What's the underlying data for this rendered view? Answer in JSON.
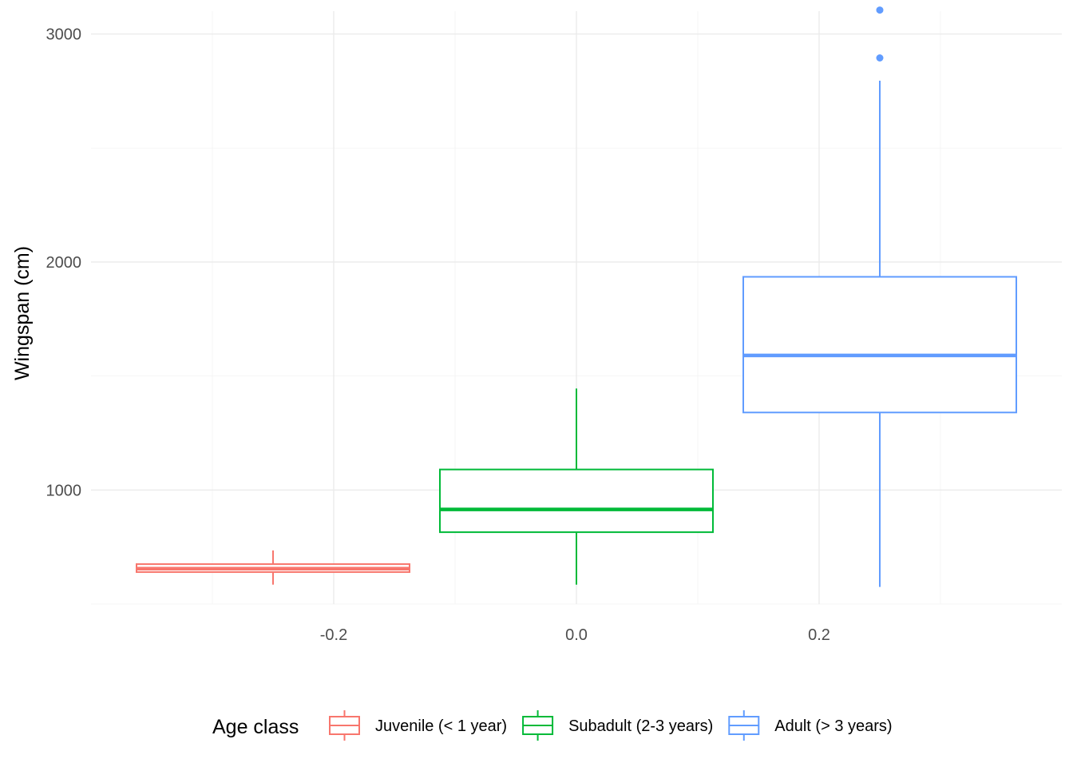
{
  "chart_data": {
    "type": "boxplot",
    "xlabel": "",
    "ylabel": "Wingspan (cm)",
    "xlim": [
      -0.4,
      0.4
    ],
    "ylim": [
      500,
      3100
    ],
    "x_ticks": [
      -0.2,
      0.0,
      0.2
    ],
    "x_tick_labels": [
      "-0.2",
      "0.0",
      "0.2"
    ],
    "y_ticks": [
      1000,
      2000,
      3000
    ],
    "y_tick_labels": [
      "1000",
      "2000",
      "3000"
    ],
    "grid": true,
    "legend_title": "Age class",
    "legend_position": "bottom",
    "series": [
      {
        "name": "Juvenile (< 1 year)",
        "color": "#F8766D",
        "x_center": -0.25,
        "width": 0.225,
        "whisker_low": 585,
        "q1": 640,
        "median": 655,
        "q3": 675,
        "whisker_high": 735,
        "outliers": []
      },
      {
        "name": "Subadult (2-3 years)",
        "color": "#00BA38",
        "x_center": 0.0,
        "width": 0.225,
        "whisker_low": 585,
        "q1": 815,
        "median": 915,
        "q3": 1090,
        "whisker_high": 1445,
        "outliers": []
      },
      {
        "name": "Adult (> 3 years)",
        "color": "#619CFF",
        "x_center": 0.25,
        "width": 0.225,
        "whisker_low": 575,
        "q1": 1340,
        "median": 1590,
        "q3": 1935,
        "whisker_high": 2795,
        "outliers": [
          2895,
          3105
        ]
      }
    ]
  }
}
